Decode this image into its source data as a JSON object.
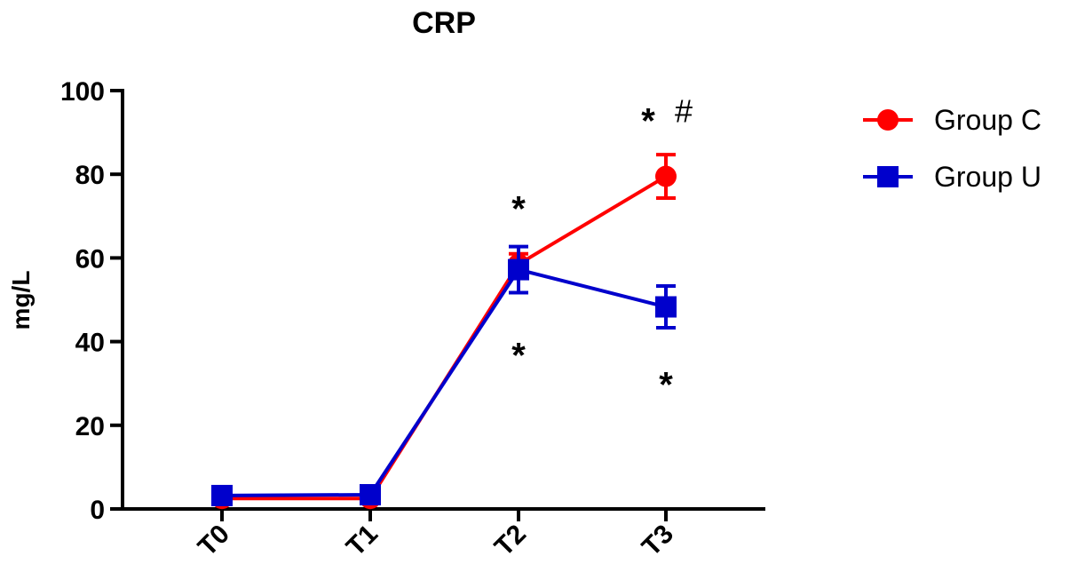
{
  "chart_data": {
    "type": "line",
    "title": "CRP",
    "xlabel": "",
    "ylabel": "mg/L",
    "categories": [
      "T0",
      "T1",
      "T2",
      "T3"
    ],
    "ylim": [
      0,
      100
    ],
    "yticks": [
      0,
      20,
      40,
      60,
      80,
      100
    ],
    "grid": false,
    "legend_position": "top-right",
    "series": [
      {
        "name": "Group C",
        "color": "#ff0000",
        "marker": "circle",
        "values": [
          2.5,
          2.5,
          58.5,
          79.5
        ],
        "error": [
          0.5,
          0.5,
          2.5,
          5.2
        ]
      },
      {
        "name": "Group U",
        "color": "#0000cc",
        "marker": "square",
        "values": [
          3.2,
          3.4,
          57.2,
          48.3
        ],
        "error": [
          0.5,
          0.5,
          5.5,
          5.0
        ]
      }
    ],
    "annotations": [
      {
        "text": "*",
        "category": "T2",
        "y": 74
      },
      {
        "text": "*",
        "category": "T2",
        "y": 39
      },
      {
        "text": "*",
        "category": "T3",
        "y": 95
      },
      {
        "text": "#",
        "category": "T3",
        "y": 95
      },
      {
        "text": "*",
        "category": "T3",
        "y": 32
      }
    ]
  }
}
